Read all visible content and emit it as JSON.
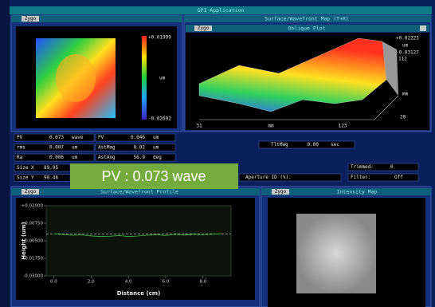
{
  "window": {
    "title": "GPI Application"
  },
  "map_panel": {
    "logo": "Zygo",
    "scale_max": "+0.01999",
    "scale_unit": "um",
    "scale_min": "-0.02692"
  },
  "oblique_panel": {
    "logo": "Zygo",
    "title": "Surface/Wavefront Map (T+R)",
    "subtitle": "Oblique Plot",
    "scale_max": "+0.02221",
    "scale_unit": "um",
    "scale_min": "-0.03127",
    "depth_max": "112",
    "depth_unit": "mm",
    "depth_min": "20",
    "x_min": "31",
    "x_unit": "mm",
    "x_max": "123"
  },
  "stats": {
    "rows": [
      [
        "PV",
        "0.073",
        "wave",
        "PV",
        "0.046",
        "um"
      ],
      [
        "rms",
        "0.007",
        "um",
        "AstMag",
        "0.02",
        "um"
      ],
      [
        "Ra",
        "0.006",
        "um",
        "AstAng",
        "56.9",
        "deg"
      ]
    ],
    "size": [
      [
        "Size X",
        "89.95"
      ],
      [
        "Size Y",
        "90.46"
      ]
    ],
    "tilt": [
      "TltMag",
      "0.00",
      "sec"
    ],
    "trimmed": [
      "Trimmed:",
      "0"
    ],
    "aperture": "Aperture ID (%):",
    "filter": [
      "Filter:",
      "Off"
    ]
  },
  "overlay": "PV : 0.073 wave",
  "profile": {
    "logo": "Zygo",
    "title": "Surface/Wavefront Profile",
    "ylabel": "Height (um)",
    "xlabel": "Distance (cm)",
    "xlim": [
      -0.4,
      9.5
    ],
    "ylim": [
      -0.03,
      0.02
    ],
    "xticks": [
      {
        "value": 0,
        "label": "0.0"
      },
      {
        "value": 2,
        "label": "2.0"
      },
      {
        "value": 4,
        "label": "4.0"
      },
      {
        "value": 6,
        "label": "6.0"
      },
      {
        "value": 8,
        "label": "8.0"
      }
    ],
    "yticks": [
      {
        "value": 0.02,
        "label": "+0.02000"
      },
      {
        "value": 0.0075,
        "label": "+0.00750"
      },
      {
        "value": -0.005,
        "label": "-0.00500"
      },
      {
        "value": -0.0175,
        "label": "-0.01750"
      },
      {
        "value": -0.03,
        "label": "-0.03000"
      }
    ],
    "reference": 0,
    "color": "#3fbf3f",
    "x": [
      0,
      0.5,
      1,
      1.5,
      2,
      2.5,
      3,
      3.5,
      4,
      4.5,
      5,
      5.5,
      6,
      6.5,
      7,
      7.5,
      8,
      8.5,
      9
    ],
    "values": [
      0,
      -0.0005,
      -0.001,
      -0.0008,
      -0.0015,
      -0.002,
      -0.0018,
      -0.0012,
      -0.002,
      -0.0016,
      -0.001,
      -0.0006,
      -0.0012,
      -0.0004,
      -0.0009,
      -0.0003,
      -0.0007,
      -0.0002,
      0
    ]
  },
  "intensity_panel": {
    "logo": "Zygo",
    "title": "Intensity Map"
  }
}
